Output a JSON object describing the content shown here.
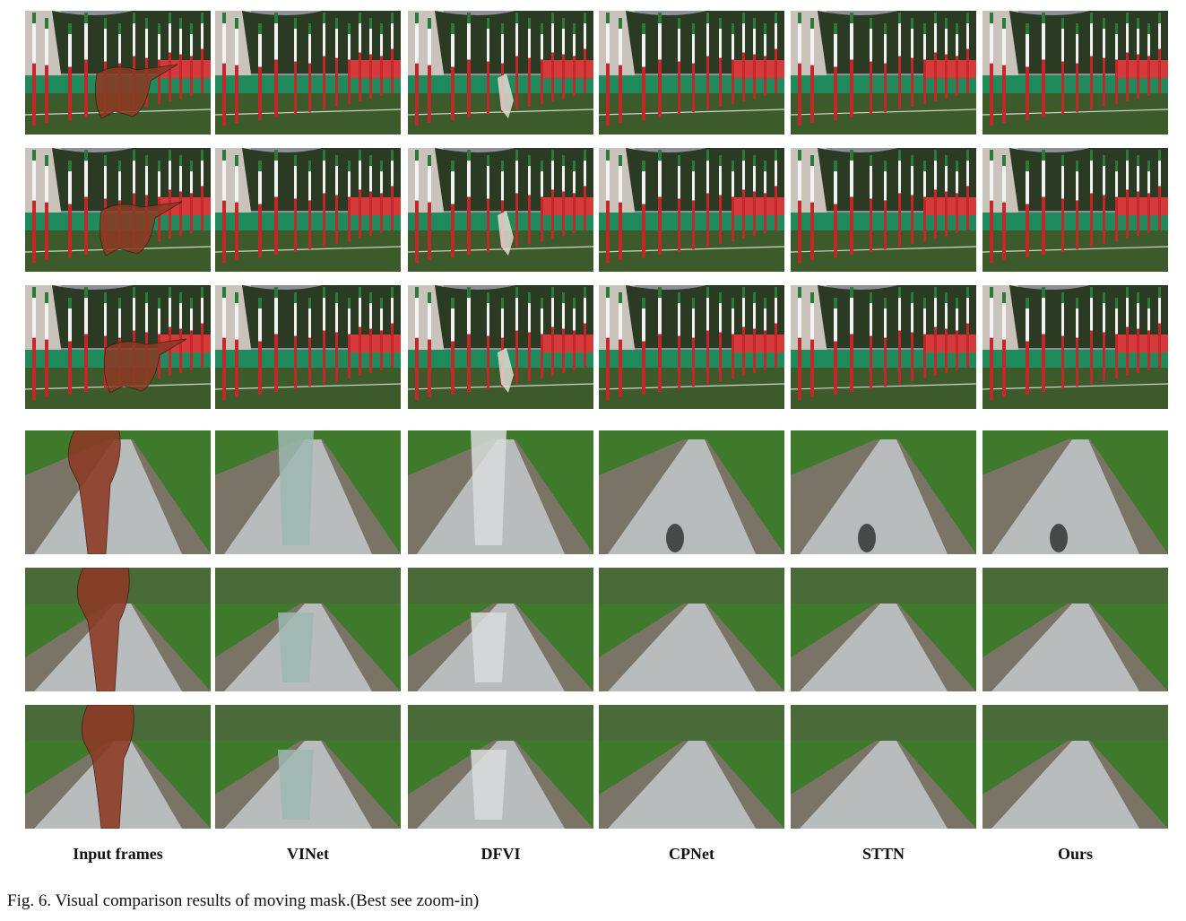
{
  "columns": [
    "Input frames",
    "VINet",
    "DFVI",
    "CPNet",
    "STTN",
    "Ours"
  ],
  "scenes": [
    {
      "type": "field",
      "rows": 3
    },
    {
      "type": "road",
      "rows": 3
    }
  ],
  "caption": "Fig. 6.  Visual comparison results of moving mask.(Best see zoom-in)",
  "colors": {
    "sky": "#8e8f99",
    "building": "#c9c3bc",
    "trees": "#2b3a22",
    "fence": "#1f8a5c",
    "grass": "#3d5a2a",
    "pole_red": "#c4262a",
    "pole_white": "#f2f2f2",
    "pole_green": "#2a7a3a",
    "mask": "#8c3a24",
    "road": "#b8bcbc",
    "foliage": "#3f7a2c",
    "gravel": "#7a7466"
  }
}
